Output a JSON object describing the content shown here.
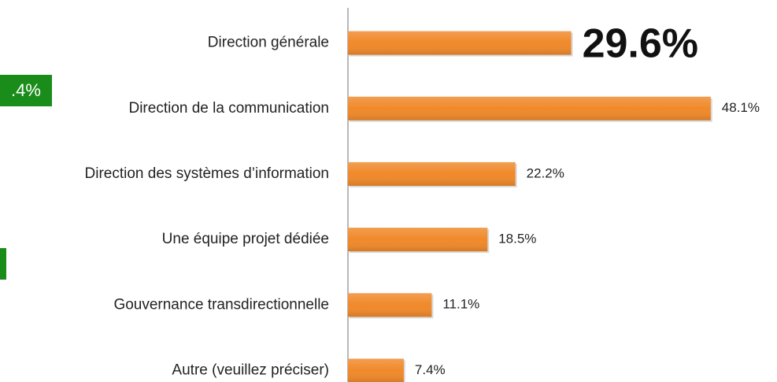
{
  "chart_data": {
    "type": "barh",
    "categories": [
      "Direction générale",
      "Direction de la communication",
      "Direction des systèmes d’information",
      "Une équipe projet dédiée",
      "Gouvernance transdirectionnelle",
      "Autre (veuillez préciser)"
    ],
    "values": [
      29.6,
      48.1,
      22.2,
      18.5,
      11.1,
      7.4
    ],
    "value_labels": [
      "29.6%",
      "48.1%",
      "22.2%",
      "18.5%",
      "11.1%",
      "7.4%"
    ],
    "color": "#f0892a",
    "xlim": [
      0,
      50
    ],
    "annotations": [
      ".4%"
    ]
  }
}
